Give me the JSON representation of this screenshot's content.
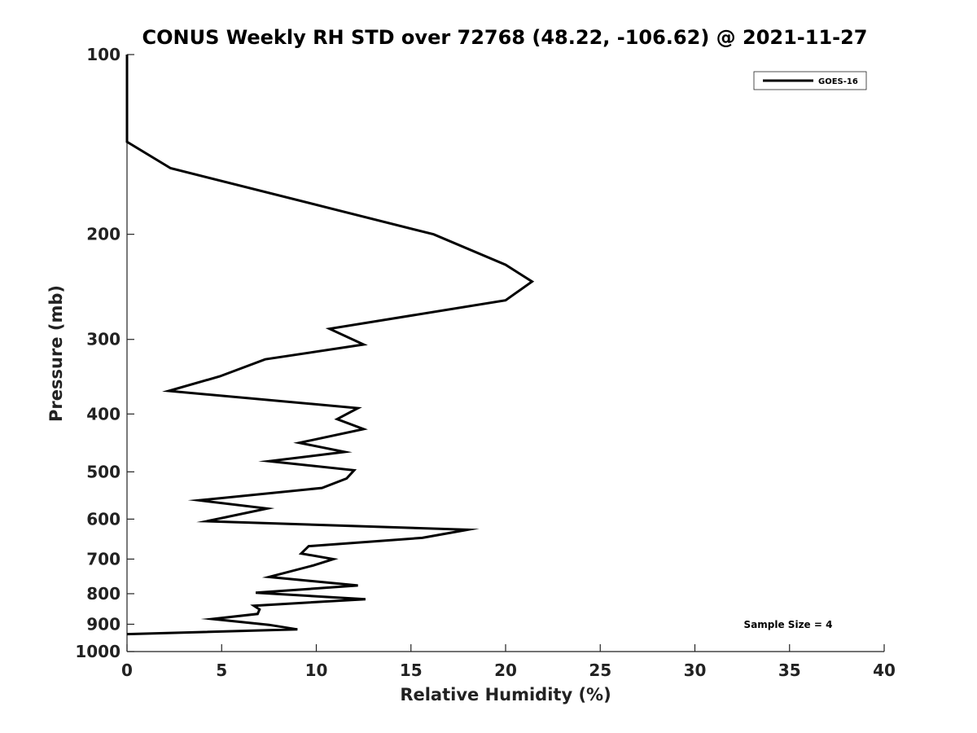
{
  "chart_data": {
    "type": "line",
    "title": "CONUS Weekly RH STD over 72768 (48.22, -106.62) @ 2021-11-27",
    "xlabel": "Relative Humidity (%)",
    "ylabel": "Pressure (mb)",
    "xlim": [
      0,
      40
    ],
    "ylim": [
      100,
      1000
    ],
    "y_scale": "log",
    "y_reversed": true,
    "xticks": [
      0,
      5,
      10,
      15,
      20,
      25,
      30,
      35,
      40
    ],
    "xtick_labels": [
      "0",
      "5",
      "10",
      "15",
      "20",
      "25",
      "30",
      "35",
      "40"
    ],
    "yticks": [
      100,
      200,
      300,
      400,
      500,
      600,
      700,
      800,
      900,
      1000
    ],
    "ytick_labels": [
      "100",
      "200",
      "300",
      "400",
      "500",
      "600",
      "700",
      "800",
      "900",
      "1000"
    ],
    "grid": false,
    "legend_position": "top-right",
    "line_color": "#000000",
    "series": [
      {
        "name": "GOES-16",
        "points": [
          [
            0,
            100
          ],
          [
            0,
            125
          ],
          [
            0,
            140
          ],
          [
            2.3,
            155
          ],
          [
            16.2,
            200
          ],
          [
            20,
            225
          ],
          [
            21.4,
            240
          ],
          [
            20,
            258
          ],
          [
            10.7,
            288
          ],
          [
            12.5,
            306
          ],
          [
            7.3,
            324
          ],
          [
            4.9,
            346
          ],
          [
            2.2,
            366
          ],
          [
            12.2,
            391
          ],
          [
            11.1,
            408
          ],
          [
            12.5,
            424
          ],
          [
            9.1,
            447
          ],
          [
            11.5,
            463
          ],
          [
            7.5,
            480
          ],
          [
            12,
            497
          ],
          [
            11.6,
            513
          ],
          [
            10.3,
            532
          ],
          [
            3.8,
            558
          ],
          [
            7.4,
            576
          ],
          [
            4.2,
            605
          ],
          [
            18,
            625
          ],
          [
            15.6,
            645
          ],
          [
            9.6,
            666
          ],
          [
            9.2,
            685
          ],
          [
            10.9,
            700
          ],
          [
            9.8,
            718
          ],
          [
            7.5,
            750
          ],
          [
            12.2,
            775
          ],
          [
            6.8,
            797
          ],
          [
            12.6,
            817
          ],
          [
            6.7,
            838
          ],
          [
            7,
            850
          ],
          [
            6.9,
            865
          ],
          [
            4.5,
            882
          ],
          [
            7.5,
            902
          ],
          [
            9,
            918
          ],
          [
            0,
            935
          ]
        ]
      }
    ],
    "legend": [
      "GOES-16"
    ],
    "annotation": "Sample Size = 4"
  }
}
